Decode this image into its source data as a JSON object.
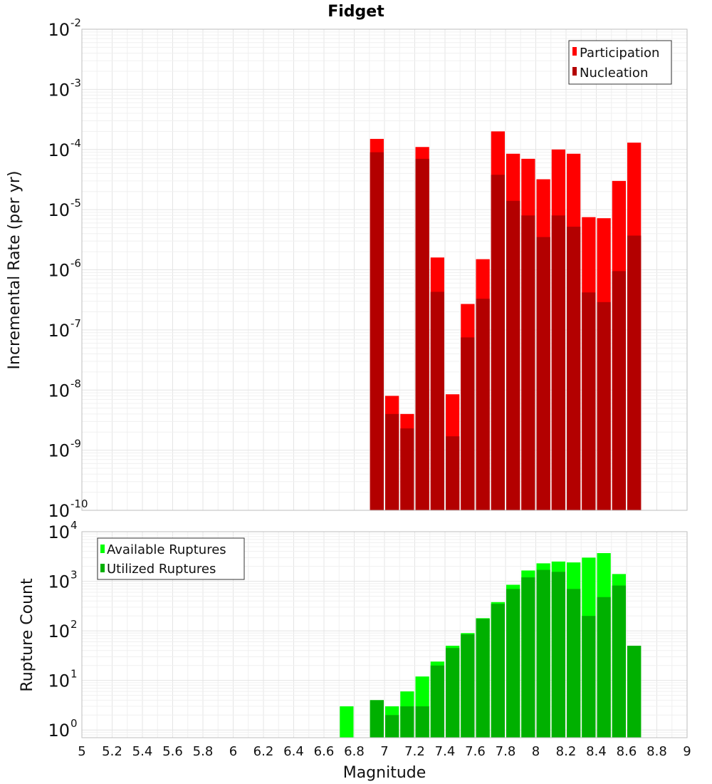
{
  "title": "Fidget",
  "colors": {
    "participation": "#ff0000",
    "nucleation": "#b30000",
    "available": "#00ff00",
    "utilized": "#00b000"
  },
  "chart_data": [
    {
      "type": "bar",
      "scale": "log",
      "ylabel": "Incremental Rate (per yr)",
      "xlabel": "",
      "ylim": [
        1e-10,
        0.01
      ],
      "xlim": [
        5,
        9
      ],
      "grid": true,
      "legend_position": "top-right",
      "y_ticks": [
        {
          "base": "10",
          "exp": "-2"
        },
        {
          "base": "10",
          "exp": "-3"
        },
        {
          "base": "10",
          "exp": "-4"
        },
        {
          "base": "10",
          "exp": "-5"
        },
        {
          "base": "10",
          "exp": "-6"
        },
        {
          "base": "10",
          "exp": "-7"
        },
        {
          "base": "10",
          "exp": "-8"
        },
        {
          "base": "10",
          "exp": "-9"
        },
        {
          "base": "10",
          "exp": "-10"
        }
      ],
      "x": [
        6.95,
        7.05,
        7.15,
        7.25,
        7.35,
        7.45,
        7.55,
        7.65,
        7.75,
        7.85,
        7.95,
        8.05,
        8.15,
        8.25,
        8.35,
        8.45,
        8.55,
        8.65
      ],
      "series": [
        {
          "name": "Participation",
          "color": "#ff0000",
          "values": [
            0.00015,
            8e-09,
            4e-09,
            0.00011,
            1.6e-06,
            8.5e-09,
            2.7e-07,
            1.5e-06,
            0.0002,
            8.5e-05,
            7e-05,
            3.2e-05,
            0.0001,
            8.5e-05,
            7.5e-06,
            7.2e-06,
            3e-05,
            0.00013
          ]
        },
        {
          "name": "Nucleation",
          "color": "#b30000",
          "values": [
            9e-05,
            4e-09,
            2.3e-09,
            7e-05,
            4.3e-07,
            1.7e-09,
            7.5e-08,
            3.3e-07,
            3.8e-05,
            1.4e-05,
            8e-06,
            3.5e-06,
            8e-06,
            5.2e-06,
            4.2e-07,
            2.9e-07,
            9.5e-07,
            3.7e-06
          ]
        }
      ]
    },
    {
      "type": "bar",
      "scale": "log",
      "ylabel": "Rupture Count",
      "xlabel": "Magnitude",
      "ylim": [
        0.7,
        10000
      ],
      "xlim": [
        5,
        9
      ],
      "grid": true,
      "legend_position": "top-left",
      "y_ticks": [
        {
          "base": "10",
          "exp": "4"
        },
        {
          "base": "10",
          "exp": "3"
        },
        {
          "base": "10",
          "exp": "2"
        },
        {
          "base": "10",
          "exp": "1"
        },
        {
          "base": "10",
          "exp": "0"
        }
      ],
      "x_ticks": [
        "5",
        "5.2",
        "5.4",
        "5.6",
        "5.8",
        "6",
        "6.2",
        "6.4",
        "6.6",
        "6.8",
        "7",
        "7.2",
        "7.4",
        "7.6",
        "7.8",
        "8",
        "8.2",
        "8.4",
        "8.6",
        "8.8",
        "9"
      ],
      "x": [
        6.75,
        6.95,
        7.05,
        7.15,
        7.25,
        7.35,
        7.45,
        7.55,
        7.65,
        7.75,
        7.85,
        7.95,
        8.05,
        8.15,
        8.25,
        8.35,
        8.45,
        8.55,
        8.65
      ],
      "series": [
        {
          "name": "Available Ruptures",
          "color": "#00ff00",
          "values": [
            3,
            4,
            3,
            6,
            12,
            24,
            50,
            90,
            180,
            380,
            850,
            1650,
            2300,
            2500,
            2400,
            3000,
            3700,
            1400,
            50
          ]
        },
        {
          "name": "Utilized Ruptures",
          "color": "#00b000",
          "values": [
            null,
            4,
            2,
            3,
            3,
            20,
            45,
            85,
            175,
            350,
            700,
            1200,
            1700,
            1550,
            700,
            200,
            480,
            820,
            50
          ]
        }
      ]
    }
  ]
}
